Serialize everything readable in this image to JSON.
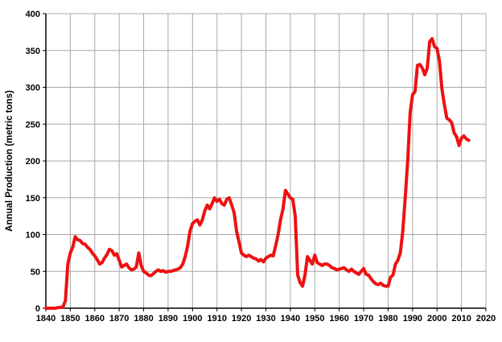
{
  "chart_data": {
    "type": "line",
    "title": "",
    "xlabel": "",
    "ylabel": "Annual Production (metric tons)",
    "xlim": [
      1840,
      2020
    ],
    "ylim": [
      0,
      400
    ],
    "x_tick_step": 10,
    "y_tick_step": 50,
    "grid": true,
    "legend": "none",
    "x_start": 1840,
    "x_step": 1,
    "values": [
      0,
      0,
      0,
      0,
      0,
      1,
      1,
      2,
      10,
      60,
      75,
      83,
      97,
      93,
      92,
      88,
      87,
      83,
      80,
      75,
      71,
      66,
      60,
      62,
      68,
      73,
      80,
      78,
      72,
      74,
      65,
      56,
      58,
      60,
      55,
      52,
      53,
      56,
      75,
      58,
      50,
      48,
      45,
      44,
      47,
      50,
      52,
      50,
      51,
      49,
      50,
      50,
      51,
      52,
      53,
      55,
      60,
      70,
      85,
      105,
      115,
      118,
      120,
      113,
      120,
      132,
      140,
      135,
      142,
      150,
      145,
      148,
      142,
      140,
      148,
      150,
      140,
      130,
      105,
      90,
      75,
      72,
      70,
      72,
      70,
      68,
      67,
      64,
      66,
      63,
      68,
      70,
      72,
      71,
      85,
      100,
      120,
      135,
      160,
      155,
      150,
      148,
      125,
      45,
      35,
      30,
      45,
      70,
      65,
      60,
      72,
      62,
      60,
      58,
      60,
      60,
      58,
      55,
      54,
      52,
      53,
      54,
      55,
      52,
      50,
      53,
      50,
      48,
      46,
      50,
      54,
      46,
      45,
      40,
      36,
      33,
      32,
      34,
      31,
      30,
      30,
      42,
      45,
      60,
      65,
      75,
      105,
      150,
      200,
      265,
      290,
      294,
      330,
      331,
      326,
      317,
      326,
      362,
      366,
      355,
      353,
      335,
      298,
      277,
      258,
      256,
      252,
      238,
      233,
      221,
      231,
      234,
      230,
      228
    ],
    "colors": {
      "series": "#ee1111",
      "grid": "#a8a8a8",
      "axis": "#000000",
      "background": "#ffffff"
    }
  }
}
